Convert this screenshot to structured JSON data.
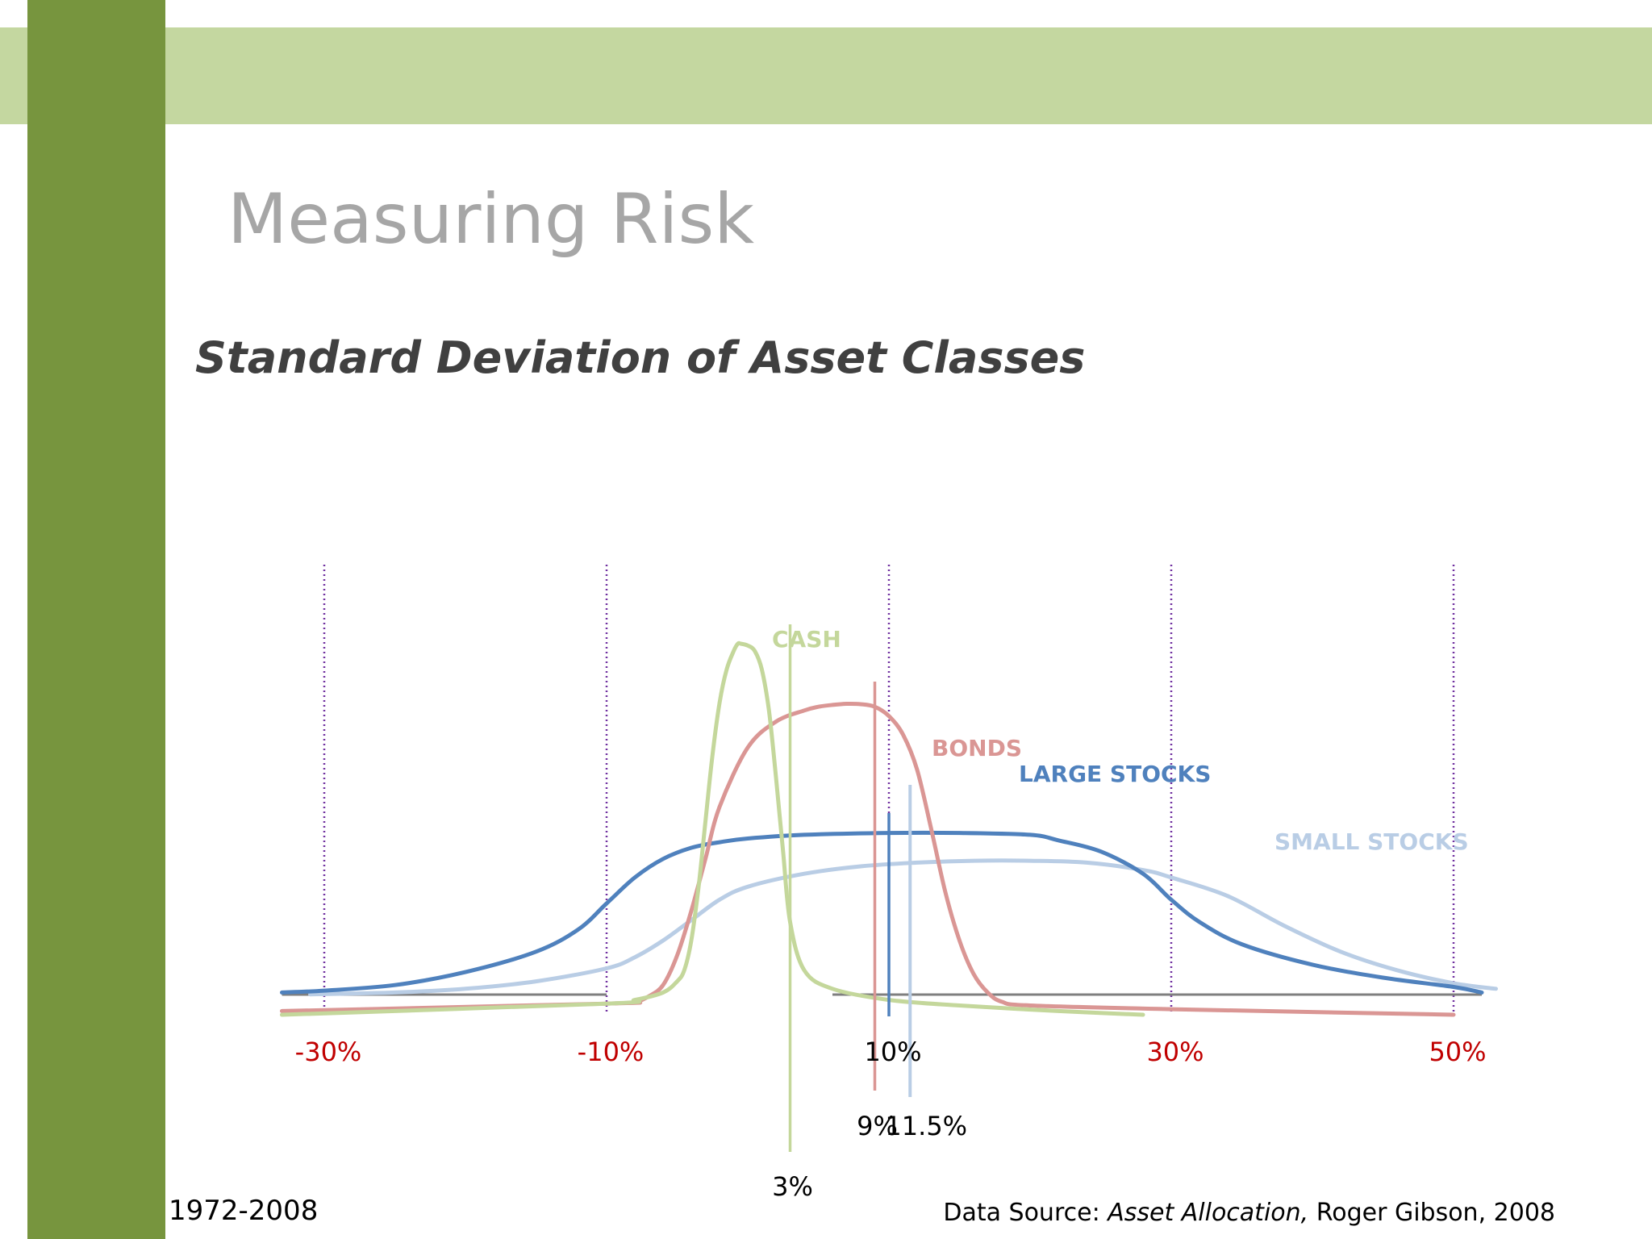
{
  "slide": {
    "title": "Measuring Risk",
    "subtitle": "Standard Deviation of Asset Classes",
    "period": "1972-2008",
    "source_prefix": "Data Source: ",
    "source_title": "Asset Allocation,",
    "source_suffix": " Roger Gibson, 2008"
  },
  "colors": {
    "top_band": "#c4d7a0",
    "left_bar": "#77953e",
    "gridline": "#7030a0",
    "tick_red": "#c00000",
    "baseline": "#7f7f7f"
  },
  "chart_data": {
    "type": "line",
    "title": "",
    "xlabel": "",
    "ylabel": "",
    "x_range": [
      -33,
      53
    ],
    "x_ticks": [
      {
        "value": -30,
        "label": "-30%",
        "color": "#c00000"
      },
      {
        "value": -10,
        "label": "-10%",
        "color": "#c00000"
      },
      {
        "value": 10,
        "label": "10%",
        "color": "#000000"
      },
      {
        "value": 30,
        "label": "30%",
        "color": "#c00000"
      },
      {
        "value": 50,
        "label": "50%",
        "color": "#c00000"
      }
    ],
    "series": [
      {
        "name": "CASH",
        "color": "#c4d79b",
        "x": [
          -33,
          -10,
          -8,
          -6,
          -5,
          -4.5,
          -4,
          -3.5,
          -3,
          -2.5,
          -2,
          -1.5,
          -1,
          -0.7,
          -0.5,
          0,
          0.5,
          1,
          1.5,
          2,
          2.5,
          3,
          4,
          6,
          10,
          15,
          22,
          28
        ],
        "y": [
          0,
          3,
          4,
          6,
          9,
          12,
          20,
          34,
          52,
          70,
          84,
          93,
          98,
          100,
          100,
          99.5,
          98,
          93,
          82,
          64,
          44,
          25,
          12,
          7,
          4,
          2.5,
          1,
          0
        ],
        "mean": 3,
        "mean_label": "3%"
      },
      {
        "name": "BONDS",
        "color": "#da9694",
        "x": [
          -33,
          -10,
          -8,
          -7,
          -6,
          -5,
          -4,
          -3,
          -2,
          0,
          2,
          4,
          5,
          6,
          7,
          8,
          9,
          10,
          11,
          12,
          13,
          14,
          15,
          16,
          17,
          18,
          20,
          30,
          50
        ],
        "y": [
          1,
          3,
          3.5,
          5,
          8,
          16,
          28,
          42,
          56,
          72,
          79,
          82,
          83,
          83.5,
          83.8,
          83.7,
          83,
          80.5,
          75.5,
          66,
          50,
          33,
          20,
          11,
          6,
          3.5,
          2.5,
          1.5,
          0
        ],
        "mean": 9,
        "mean_label": "9%"
      },
      {
        "name": "LARGE STOCKS",
        "color": "#4f81bd",
        "x": [
          -33,
          -30,
          -25,
          -20,
          -15,
          -12,
          -10,
          -8,
          -6,
          -4,
          -2,
          0,
          4,
          10,
          15,
          20,
          22,
          25,
          28,
          30,
          32,
          35,
          40,
          45,
          50,
          52
        ],
        "y": [
          6,
          6.5,
          8,
          11.5,
          17,
          23,
          30,
          37,
          42,
          45,
          46.5,
          47.5,
          48.5,
          49,
          49,
          48.5,
          47,
          44,
          38,
          31,
          25,
          19,
          13.5,
          10,
          7.5,
          6
        ],
        "mean": 10,
        "mean_label": "10%"
      },
      {
        "name": "SMALL STOCKS",
        "color": "#b9cde5",
        "x": [
          -31,
          -25,
          -20,
          -15,
          -10,
          -8,
          -6,
          -4,
          -2,
          0,
          4,
          8,
          12,
          16,
          20,
          24,
          28,
          30,
          34,
          38,
          42,
          46,
          50,
          53
        ],
        "y": [
          5.5,
          6,
          7,
          9,
          12.5,
          15.5,
          20,
          25.5,
          31,
          34.5,
          38,
          40,
          41,
          41.5,
          41.5,
          41,
          39,
          37,
          32,
          24,
          17,
          12,
          8.5,
          7
        ],
        "mean": 11.5,
        "mean_label": "11.5%"
      }
    ],
    "baseline_segments": [
      [
        -33,
        -10
      ],
      [
        6,
        52
      ]
    ]
  }
}
